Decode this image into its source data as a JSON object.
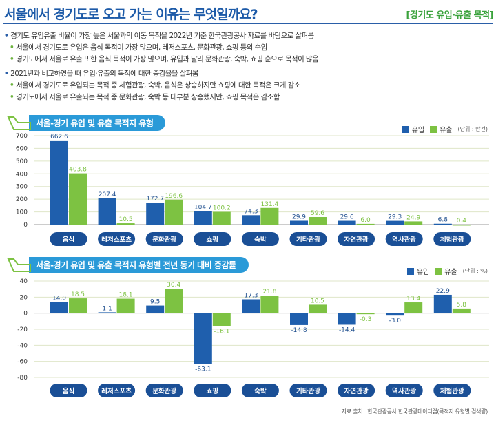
{
  "header": {
    "title": "서울에서 경기도로 오고 가는 이유는 무엇일까요?",
    "tag": "[경기도 유입·유출 목적]"
  },
  "bullets": [
    {
      "level": 1,
      "text": "경기도 유입유출 비율이 가장 높은 서울과의 이동 목적을 2022년 기준 한국관광공사 자료를 바탕으로 살펴봄"
    },
    {
      "level": 2,
      "text": "서울에서 경기도로 유입은 음식 목적이 가장 많으며, 레저스포츠, 문화관광, 쇼핑 등의 순임"
    },
    {
      "level": 2,
      "text": "경기도에서 서울로 유출 또한 음식 목적이 가장 많으며, 유입과 달리 문화관광, 숙박, 쇼핑 순으로 목적이 많음"
    },
    {
      "level": 1,
      "text": "2021년과 비교하였을 때 유입·유출의 목적에 대한 증감율을 살펴봄"
    },
    {
      "level": 2,
      "text": "서울에서 경기도로 유입되는 목적 중 체험관광, 숙박, 음식은 상승하지만 쇼핑에 대한 목적은 크게 감소"
    },
    {
      "level": 2,
      "text": "경기도에서 서울로 유출되는 목적 중 문화관광, 숙박 등 대부분 상승했지만, 쇼핑 목적은 감소함"
    }
  ],
  "colors": {
    "inflow": "#1f5fad",
    "outflow": "#7dc242",
    "pill": "#1a4f96",
    "header_bar": "#2a9ad8"
  },
  "chart_data": [
    {
      "type": "bar",
      "title": "서울-경기 유입 및 유출 목적지 유형",
      "unit": "(단위 : 만건)",
      "categories": [
        "음식",
        "레저스포츠",
        "문화관광",
        "쇼핑",
        "숙박",
        "기타관광",
        "자연관광",
        "역사관광",
        "체험관광"
      ],
      "series": [
        {
          "name": "유입",
          "values": [
            662.6,
            207.4,
            172.7,
            104.7,
            74.3,
            29.9,
            29.6,
            29.3,
            6.8
          ]
        },
        {
          "name": "유출",
          "values": [
            403.8,
            10.5,
            196.6,
            100.2,
            131.4,
            59.6,
            6.0,
            24.9,
            0.4
          ]
        }
      ],
      "ylim": [
        0,
        700
      ],
      "yticks": [
        0,
        100,
        200,
        300,
        400,
        500,
        600,
        700
      ],
      "grid": true,
      "legend": "top-right"
    },
    {
      "type": "bar",
      "title": "서울-경기 유입 및 유출 목적지 유형별 전년 동기 대비 증감률",
      "unit": "(단위 : %)",
      "categories": [
        "음식",
        "레저스포츠",
        "문화관광",
        "쇼핑",
        "숙박",
        "기타관광",
        "자연관광",
        "역사관광",
        "체험관광"
      ],
      "series": [
        {
          "name": "유입",
          "values": [
            14.0,
            1.1,
            9.5,
            -63.1,
            17.3,
            -14.8,
            -14.4,
            -3.0,
            22.9
          ]
        },
        {
          "name": "유출",
          "values": [
            18.5,
            18.1,
            30.4,
            -16.1,
            21.8,
            10.5,
            -0.3,
            13.4,
            5.8
          ]
        }
      ],
      "ylim": [
        -80,
        40
      ],
      "yticks": [
        -80,
        -60,
        -40,
        -20,
        0,
        20,
        40
      ],
      "grid": true,
      "legend": "top-right"
    }
  ],
  "source": "자료 출처 : 한국관광공사 한국관광데이터랩(목적지 유형별 검색량)"
}
